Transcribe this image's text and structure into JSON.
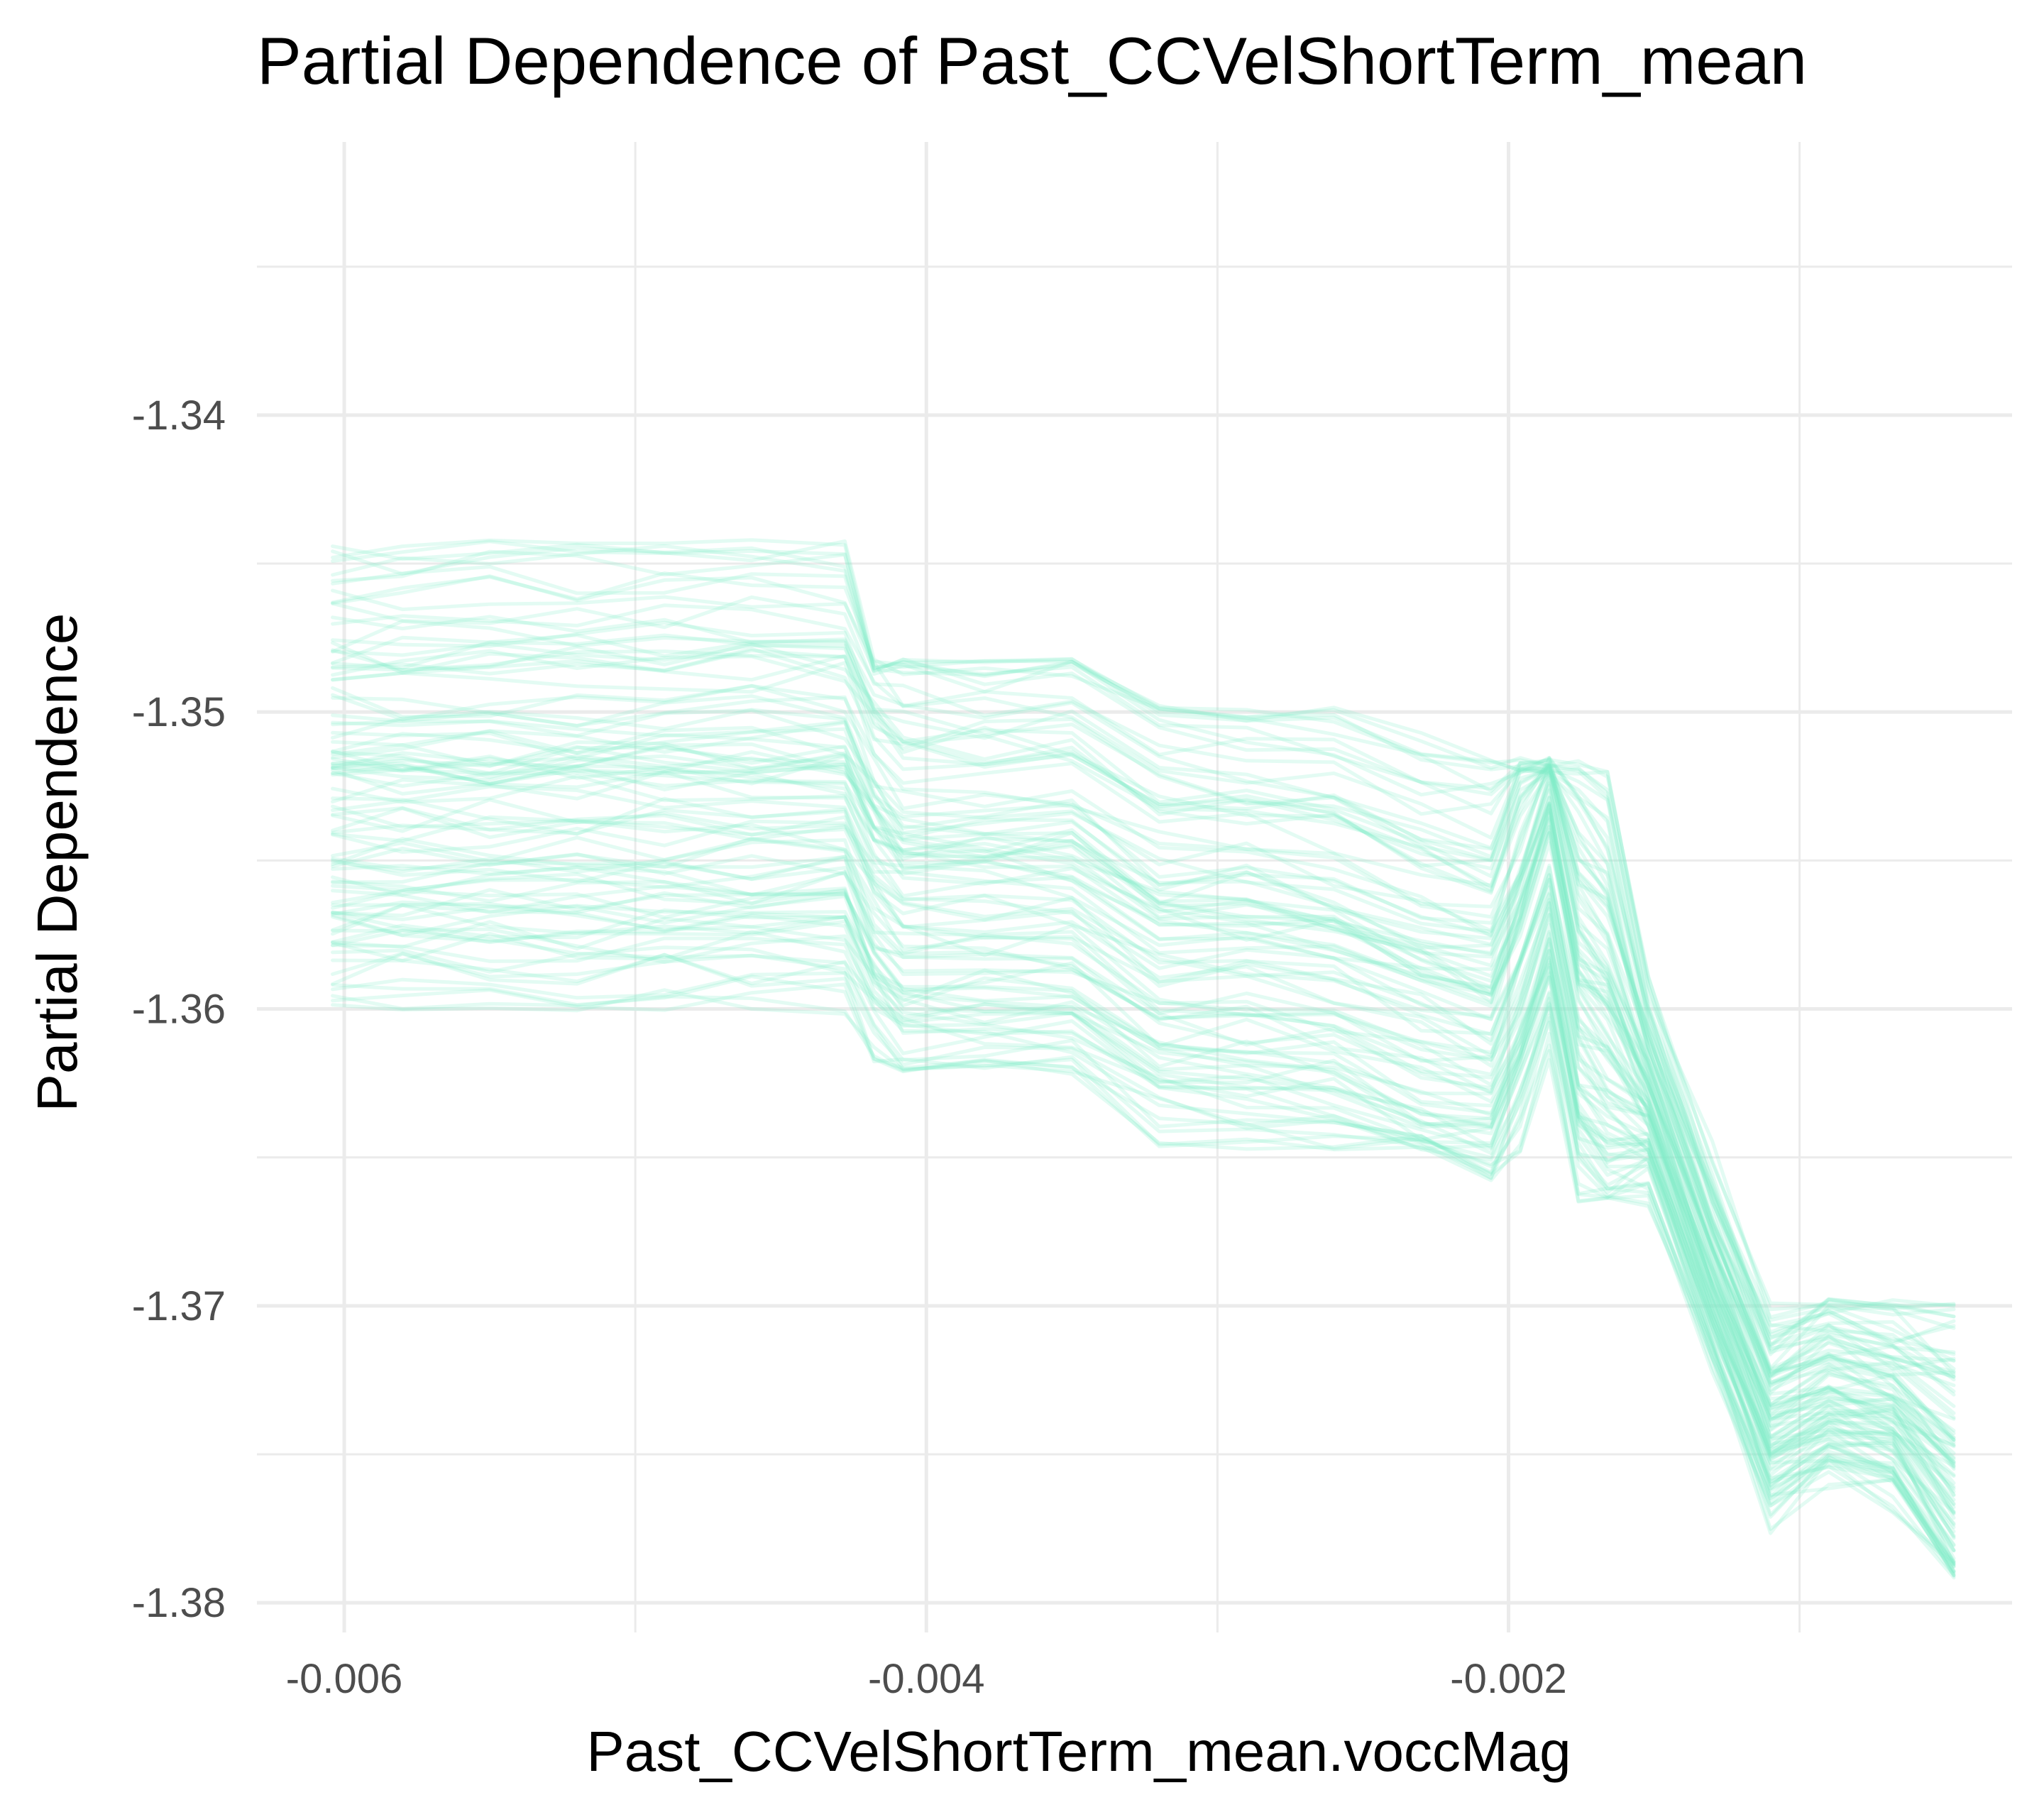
{
  "chart_data": {
    "type": "line",
    "title": "Partial Dependence of Past_CCVelShortTerm_mean",
    "xlabel": "Past_CCVelShortTerm_mean.voccMag",
    "ylabel": "Partial Dependence",
    "xlim": [
      -0.0063,
      -0.00027
    ],
    "ylim": [
      -1.381,
      -1.3308
    ],
    "x_major_ticks": [
      -0.006,
      -0.004,
      -0.002
    ],
    "x_tick_labels": [
      "-0.006",
      "-0.004",
      "-0.002"
    ],
    "x_minor_ticks": [
      -0.005,
      -0.003,
      -0.001
    ],
    "y_major_ticks": [
      -1.38,
      -1.37,
      -1.36,
      -1.35,
      -1.34
    ],
    "y_tick_labels": [
      "-1.38",
      "-1.37",
      "-1.36",
      "-1.35",
      "-1.34"
    ],
    "y_minor_ticks": [
      -1.375,
      -1.365,
      -1.355,
      -1.345,
      -1.335
    ],
    "grid": true,
    "legend": "none",
    "line_color": "#7eeec8",
    "line_opacity": 0.22,
    "n_curves": 100,
    "x": [
      -0.00604,
      -0.0058,
      -0.0055,
      -0.0052,
      -0.0049,
      -0.0046,
      -0.00428,
      -0.00418,
      -0.00408,
      -0.0038,
      -0.0035,
      -0.0032,
      -0.0029,
      -0.0026,
      -0.0023,
      -0.00206,
      -0.00196,
      -0.00186,
      -0.00176,
      -0.00166,
      -0.00152,
      -0.0013,
      -0.0011,
      -0.0009,
      -0.00068,
      -0.00047
    ],
    "mean_curve": [
      -1.3538,
      -1.3538,
      -1.3538,
      -1.3538,
      -1.3538,
      -1.3538,
      -1.3538,
      -1.3558,
      -1.3568,
      -1.3568,
      -1.3568,
      -1.3587,
      -1.3588,
      -1.3591,
      -1.3603,
      -1.3609,
      -1.3585,
      -1.3554,
      -1.3605,
      -1.3616,
      -1.3634,
      -1.3694,
      -1.3744,
      -1.3733,
      -1.3739,
      -1.3764
    ],
    "baseline_range": [
      -1.3599,
      -1.3442
    ],
    "lower_envelope": [
      -1.3602,
      -1.3602,
      -1.3602,
      -1.3602,
      -1.3602,
      -1.3602,
      -1.3602,
      -1.3622,
      -1.3622,
      -1.3622,
      -1.3622,
      -1.3648,
      -1.3648,
      -1.3648,
      -1.3648,
      -1.3658,
      -1.3658,
      -1.3665,
      -1.3665,
      -1.3665,
      -1.3672,
      -1.3758,
      -1.3788,
      -1.3792,
      -1.3792,
      -1.3792
    ],
    "upper_envelope": [
      -1.3442,
      -1.3442,
      -1.3442,
      -1.3442,
      -1.3442,
      -1.3442,
      -1.3442,
      -1.3482,
      -1.3482,
      -1.3482,
      -1.3482,
      -1.3497,
      -1.3497,
      -1.3497,
      -1.3497,
      -1.3515,
      -1.3515,
      -1.3515,
      -1.3515,
      -1.3515,
      -1.3553,
      -1.3553,
      -1.3697,
      -1.3697,
      -1.3697,
      -1.3697
    ]
  }
}
